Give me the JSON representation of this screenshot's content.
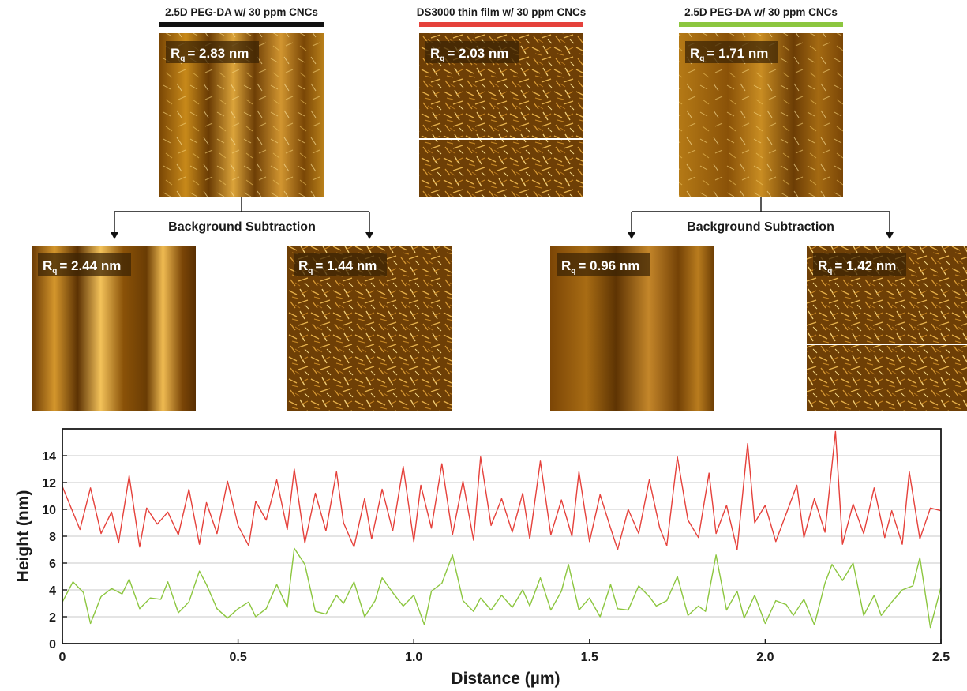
{
  "top_panels": [
    {
      "title": "2.5D PEG-DA w/ 30 ppm CNCs",
      "bar_color": "#111111",
      "rq_value": "= 2.83 nm",
      "style": "striped"
    },
    {
      "title": "DS3000 thin film w/ 30 ppm CNCs",
      "bar_color": "#e5413b",
      "rq_value": "= 2.03 nm",
      "style": "fibers"
    },
    {
      "title": "2.5D PEG-DA w/ 30 ppm CNCs",
      "bar_color": "#8cc63f",
      "rq_value": "= 1.71 nm",
      "style": "faint"
    }
  ],
  "background_subtraction_label": "Background Subtraction",
  "bottom_panels": [
    {
      "rq_value": "= 2.44 nm",
      "style": "smooth-stripes"
    },
    {
      "rq_value": "= 1.44 nm",
      "style": "fibers"
    },
    {
      "rq_value": "= 0.96 nm",
      "style": "smooth-blur"
    },
    {
      "rq_value": "= 1.42 nm",
      "style": "fibers"
    }
  ],
  "rq_symbol": "R",
  "rq_subscript": "q",
  "chart_data": {
    "type": "line",
    "xlabel": "Distance (µm)",
    "ylabel": "Height (nm)",
    "xlim": [
      0,
      2.5
    ],
    "ylim": [
      0,
      16
    ],
    "x_ticks": [
      "0",
      "0.5",
      "1.0",
      "1.5",
      "2.0",
      "2.5"
    ],
    "y_ticks": [
      "0",
      "2",
      "4",
      "6",
      "8",
      "10",
      "12",
      "14"
    ],
    "grid": "horizontal",
    "series": [
      {
        "color": "#e5413b",
        "x": [
          0,
          0.05,
          0.08,
          0.11,
          0.14,
          0.16,
          0.19,
          0.22,
          0.24,
          0.27,
          0.3,
          0.33,
          0.36,
          0.39,
          0.41,
          0.44,
          0.47,
          0.5,
          0.53,
          0.55,
          0.58,
          0.61,
          0.64,
          0.66,
          0.69,
          0.72,
          0.75,
          0.78,
          0.8,
          0.83,
          0.86,
          0.88,
          0.91,
          0.94,
          0.97,
          1.0,
          1.02,
          1.05,
          1.08,
          1.11,
          1.14,
          1.17,
          1.19,
          1.22,
          1.25,
          1.28,
          1.31,
          1.33,
          1.36,
          1.39,
          1.42,
          1.45,
          1.47,
          1.5,
          1.53,
          1.56,
          1.58,
          1.61,
          1.64,
          1.67,
          1.7,
          1.72,
          1.75,
          1.78,
          1.81,
          1.84,
          1.86,
          1.89,
          1.92,
          1.95,
          1.97,
          2.0,
          2.03,
          2.06,
          2.09,
          2.11,
          2.14,
          2.17,
          2.2,
          2.22,
          2.25,
          2.28,
          2.31,
          2.34,
          2.36,
          2.39,
          2.41,
          2.44,
          2.47,
          2.5
        ],
        "y": [
          11.7,
          8.5,
          11.6,
          8.2,
          9.8,
          7.5,
          12.5,
          7.2,
          10.1,
          8.9,
          9.8,
          8.1,
          11.5,
          7.4,
          10.5,
          8.2,
          12.1,
          8.8,
          7.3,
          10.6,
          9.2,
          12.2,
          8.5,
          13.0,
          7.5,
          11.2,
          8.4,
          12.8,
          9.0,
          7.2,
          10.8,
          7.8,
          11.5,
          8.4,
          13.2,
          7.6,
          11.8,
          8.6,
          13.4,
          8.1,
          12.1,
          7.7,
          13.9,
          8.8,
          10.8,
          8.3,
          11.2,
          7.8,
          13.6,
          8.1,
          10.7,
          8.0,
          12.8,
          7.6,
          11.1,
          8.6,
          7.0,
          10.0,
          8.2,
          12.2,
          8.6,
          7.3,
          13.9,
          9.2,
          7.9,
          12.7,
          8.2,
          10.3,
          7.0,
          14.9,
          9.0,
          10.3,
          7.6,
          9.7,
          11.8,
          7.9,
          10.8,
          8.3,
          15.8,
          7.4,
          10.4,
          8.2,
          11.6,
          7.9,
          9.9,
          7.4,
          12.8,
          7.8,
          10.1,
          9.9
        ]
      },
      {
        "color": "#8cc63f",
        "x": [
          0,
          0.03,
          0.06,
          0.08,
          0.11,
          0.14,
          0.17,
          0.19,
          0.22,
          0.25,
          0.28,
          0.3,
          0.33,
          0.36,
          0.39,
          0.41,
          0.44,
          0.47,
          0.5,
          0.53,
          0.55,
          0.58,
          0.61,
          0.64,
          0.66,
          0.69,
          0.72,
          0.75,
          0.78,
          0.8,
          0.83,
          0.86,
          0.89,
          0.91,
          0.94,
          0.97,
          1.0,
          1.03,
          1.05,
          1.08,
          1.11,
          1.14,
          1.17,
          1.19,
          1.22,
          1.25,
          1.28,
          1.31,
          1.33,
          1.36,
          1.39,
          1.42,
          1.44,
          1.47,
          1.5,
          1.53,
          1.56,
          1.58,
          1.61,
          1.64,
          1.67,
          1.69,
          1.72,
          1.75,
          1.78,
          1.81,
          1.83,
          1.86,
          1.89,
          1.92,
          1.94,
          1.97,
          2.0,
          2.03,
          2.06,
          2.08,
          2.11,
          2.14,
          2.17,
          2.19,
          2.22,
          2.25,
          2.28,
          2.31,
          2.33,
          2.36,
          2.39,
          2.42,
          2.44,
          2.47,
          2.5
        ],
        "y": [
          3.1,
          4.6,
          3.8,
          1.5,
          3.5,
          4.1,
          3.7,
          4.8,
          2.6,
          3.4,
          3.3,
          4.6,
          2.3,
          3.1,
          5.4,
          4.4,
          2.6,
          1.9,
          2.6,
          3.1,
          2.0,
          2.6,
          4.4,
          2.7,
          7.1,
          5.9,
          2.4,
          2.2,
          3.6,
          3.0,
          4.6,
          2.0,
          3.2,
          4.9,
          3.8,
          2.8,
          3.6,
          1.4,
          3.9,
          4.5,
          6.6,
          3.2,
          2.4,
          3.4,
          2.5,
          3.6,
          2.7,
          4.0,
          2.8,
          4.9,
          2.5,
          3.9,
          5.9,
          2.5,
          3.4,
          2.0,
          4.4,
          2.6,
          2.5,
          4.3,
          3.5,
          2.8,
          3.2,
          5.0,
          2.1,
          2.8,
          2.4,
          6.6,
          2.5,
          3.9,
          1.9,
          3.6,
          1.5,
          3.2,
          2.9,
          2.1,
          3.3,
          1.4,
          4.5,
          5.9,
          4.7,
          6.0,
          2.1,
          3.6,
          2.1,
          3.1,
          4.0,
          4.3,
          6.4,
          1.2,
          4.2
        ]
      }
    ]
  }
}
